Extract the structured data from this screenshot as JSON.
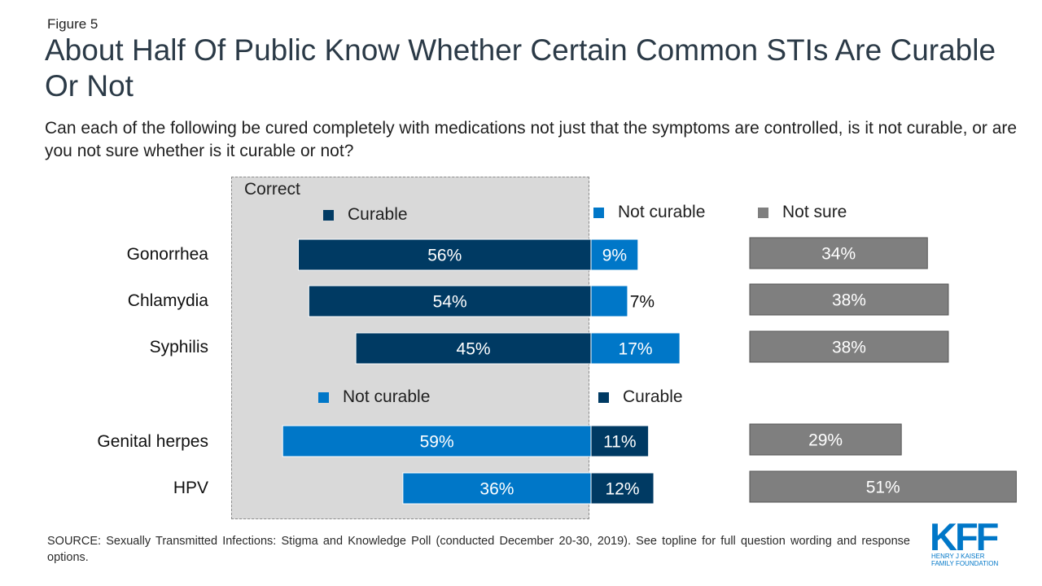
{
  "figure_label": "Figure 5",
  "chart_data": {
    "type": "bar",
    "title": "About Half Of Public Know Whether Certain Common STIs Are Curable Or Not",
    "subtitle": "Can each of the following be cured completely with medications not just that the symptoms are controlled, is it not curable, or are you not sure whether is it curable or not?",
    "correct_region_label": "Correct",
    "categories": [
      "Gonorrhea",
      "Chlamydia",
      "Syphilis",
      "Genital herpes",
      "HPV"
    ],
    "groups": [
      {
        "legend": [
          {
            "label": "Curable",
            "color": "#003a63"
          },
          {
            "label": "Not curable",
            "color": "#0077c8"
          },
          {
            "label": "Not sure",
            "color": "#7f7f7f"
          }
        ],
        "rows": [
          {
            "category": "Gonorrhea",
            "correct_name": "Curable",
            "correct": 56,
            "incorrect_name": "Not curable",
            "incorrect": 9,
            "not_sure": 34
          },
          {
            "category": "Chlamydia",
            "correct_name": "Curable",
            "correct": 54,
            "incorrect_name": "Not curable",
            "incorrect": 7,
            "not_sure": 38
          },
          {
            "category": "Syphilis",
            "correct_name": "Curable",
            "correct": 45,
            "incorrect_name": "Not curable",
            "incorrect": 17,
            "not_sure": 38
          }
        ]
      },
      {
        "legend": [
          {
            "label": "Not curable",
            "color": "#0077c8"
          },
          {
            "label": "Curable",
            "color": "#003a63"
          }
        ],
        "rows": [
          {
            "category": "Genital herpes",
            "correct_name": "Not curable",
            "correct": 59,
            "incorrect_name": "Curable",
            "incorrect": 11,
            "not_sure": 29
          },
          {
            "category": "HPV",
            "correct_name": "Not curable",
            "correct": 36,
            "incorrect_name": "Curable",
            "incorrect": 12,
            "not_sure": 51
          }
        ]
      }
    ],
    "value_labels": {
      "Gonorrhea": [
        "56%",
        "9%",
        "34%"
      ],
      "Chlamydia": [
        "54%",
        "7%",
        "38%"
      ],
      "Syphilis": [
        "45%",
        "17%",
        "38%"
      ],
      "Genital herpes": [
        "59%",
        "11%",
        "29%"
      ],
      "HPV": [
        "36%",
        "12%",
        "51%"
      ]
    },
    "unit": "%",
    "grid": false
  },
  "source": "SOURCE: Sexually Transmitted Infections: Stigma and Knowledge Poll (conducted December 20-30, 2019). See topline for full question wording and response options.",
  "logo": {
    "wordmark": "KFF",
    "line1": "HENRY J KAISER",
    "line2": "FAMILY FOUNDATION",
    "color": "#0077c8"
  }
}
